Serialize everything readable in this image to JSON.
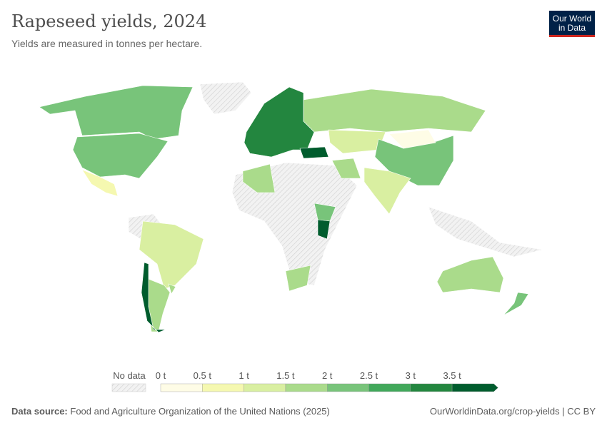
{
  "header": {
    "title": "Rapeseed yields, 2024",
    "subtitle": "Yields are measured in tonnes per hectare.",
    "logo": "Our World in Data"
  },
  "legend": {
    "no_data_label": "No data",
    "ticks": [
      "0 t",
      "0.5 t",
      "1 t",
      "1.5 t",
      "2 t",
      "2.5 t",
      "3 t",
      "3.5 t"
    ],
    "bins": [
      {
        "min": 0,
        "max": 0.5,
        "color": "#fefce6"
      },
      {
        "min": 0.5,
        "max": 1,
        "color": "#f5f8b0"
      },
      {
        "min": 1,
        "max": 1.5,
        "color": "#d9efa1"
      },
      {
        "min": 1.5,
        "max": 2,
        "color": "#aadb8b"
      },
      {
        "min": 2,
        "max": 2.5,
        "color": "#78c47a"
      },
      {
        "min": 2.5,
        "max": 3,
        "color": "#41a85a"
      },
      {
        "min": 3,
        "max": 3.5,
        "color": "#23863f"
      },
      {
        "min": 3.5,
        "max": null,
        "color": "#005c2d"
      }
    ],
    "no_data_color": "#eeeeee"
  },
  "map_data": [
    {
      "region": "Canada",
      "value": 2.3
    },
    {
      "region": "United States",
      "value": 2.2
    },
    {
      "region": "Mexico",
      "value": 0.8
    },
    {
      "region": "Brazil",
      "value": 1.3
    },
    {
      "region": "Argentina",
      "value": 1.9
    },
    {
      "region": "Chile",
      "value": 3.8
    },
    {
      "region": "Uruguay",
      "value": 1.9
    },
    {
      "region": "Europe",
      "value": 3.2
    },
    {
      "region": "Russia",
      "value": 1.6
    },
    {
      "region": "Kazakhstan",
      "value": 1.3
    },
    {
      "region": "China",
      "value": 2.3
    },
    {
      "region": "Mongolia",
      "value": 0.4
    },
    {
      "region": "India",
      "value": 1.3
    },
    {
      "region": "Australia",
      "value": 1.6
    },
    {
      "region": "New Zealand",
      "value": 2.3
    },
    {
      "region": "South Africa",
      "value": 1.8
    },
    {
      "region": "Algeria",
      "value": 1.6
    },
    {
      "region": "Ethiopia",
      "value": 2.0
    },
    {
      "region": "Kenya",
      "value": 3.6
    },
    {
      "region": "Turkey",
      "value": 3.6
    },
    {
      "region": "Iran",
      "value": 1.8
    }
  ],
  "footer": {
    "source_label": "Data source:",
    "source": "Food and Agriculture Organization of the United Nations (2025)",
    "link": "OurWorldinData.org/crop-yields | CC BY"
  }
}
